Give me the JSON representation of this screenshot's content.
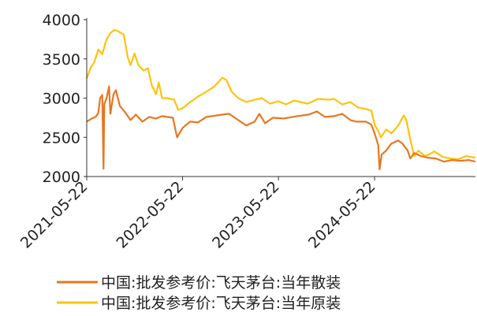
{
  "chart_data": {
    "type": "line",
    "title": "",
    "xlabel": "",
    "ylabel": "",
    "ylim": [
      2000,
      4000
    ],
    "yticks": [
      2000,
      2500,
      3000,
      3500,
      4000
    ],
    "x_tick_labels": [
      "2021-05-22",
      "2022-05-22",
      "2023-05-22",
      "2024-05-22"
    ],
    "x_tick_dates": [
      "2021-05-22",
      "2022-05-22",
      "2023-05-22",
      "2024-05-22"
    ],
    "x_range": [
      "2021-05-22",
      "2025-06-10"
    ],
    "grid": false,
    "legend_position": "bottom",
    "series": [
      {
        "name": "中国:批发参考价:飞天茅台:当年散装",
        "color": "#E87722",
        "points": [
          [
            "2021-05-22",
            2700
          ],
          [
            "2021-06-10",
            2740
          ],
          [
            "2021-06-25",
            2760
          ],
          [
            "2021-07-05",
            2810
          ],
          [
            "2021-07-12",
            3000
          ],
          [
            "2021-07-20",
            3040
          ],
          [
            "2021-07-25",
            2100
          ],
          [
            "2021-07-28",
            2930
          ],
          [
            "2021-08-05",
            2990
          ],
          [
            "2021-08-15",
            3150
          ],
          [
            "2021-08-20",
            2800
          ],
          [
            "2021-09-01",
            3050
          ],
          [
            "2021-09-10",
            3100
          ],
          [
            "2021-09-25",
            2900
          ],
          [
            "2021-10-15",
            2820
          ],
          [
            "2021-11-05",
            2720
          ],
          [
            "2021-11-25",
            2790
          ],
          [
            "2021-12-20",
            2700
          ],
          [
            "2022-01-15",
            2760
          ],
          [
            "2022-02-10",
            2740
          ],
          [
            "2022-03-05",
            2770
          ],
          [
            "2022-04-15",
            2750
          ],
          [
            "2022-05-01",
            2500
          ],
          [
            "2022-05-22",
            2620
          ],
          [
            "2022-06-20",
            2700
          ],
          [
            "2022-07-20",
            2690
          ],
          [
            "2022-08-20",
            2760
          ],
          [
            "2022-10-01",
            2780
          ],
          [
            "2022-11-15",
            2800
          ],
          [
            "2022-12-20",
            2720
          ],
          [
            "2023-01-20",
            2650
          ],
          [
            "2023-02-20",
            2700
          ],
          [
            "2023-03-10",
            2800
          ],
          [
            "2023-04-01",
            2680
          ],
          [
            "2023-05-01",
            2750
          ],
          [
            "2023-06-10",
            2740
          ],
          [
            "2023-08-01",
            2770
          ],
          [
            "2023-09-15",
            2790
          ],
          [
            "2023-10-15",
            2830
          ],
          [
            "2023-11-15",
            2760
          ],
          [
            "2023-12-20",
            2770
          ],
          [
            "2024-01-20",
            2800
          ],
          [
            "2024-02-20",
            2720
          ],
          [
            "2024-03-15",
            2700
          ],
          [
            "2024-04-20",
            2700
          ],
          [
            "2024-05-10",
            2660
          ],
          [
            "2024-05-22",
            2550
          ],
          [
            "2024-06-05",
            2400
          ],
          [
            "2024-06-10",
            2090
          ],
          [
            "2024-06-18",
            2280
          ],
          [
            "2024-07-05",
            2330
          ],
          [
            "2024-07-25",
            2420
          ],
          [
            "2024-08-20",
            2460
          ],
          [
            "2024-09-05",
            2420
          ],
          [
            "2024-09-25",
            2330
          ],
          [
            "2024-10-05",
            2230
          ],
          [
            "2024-10-20",
            2300
          ],
          [
            "2024-11-15",
            2260
          ],
          [
            "2024-12-10",
            2240
          ],
          [
            "2025-01-10",
            2230
          ],
          [
            "2025-02-10",
            2190
          ],
          [
            "2025-03-15",
            2210
          ],
          [
            "2025-04-15",
            2200
          ],
          [
            "2025-05-15",
            2210
          ],
          [
            "2025-06-10",
            2190
          ]
        ]
      },
      {
        "name": "中国:批发参考价:飞天茅台:当年原装",
        "color": "#FFC20E",
        "points": [
          [
            "2021-05-22",
            3250
          ],
          [
            "2021-06-05",
            3380
          ],
          [
            "2021-06-20",
            3460
          ],
          [
            "2021-07-05",
            3620
          ],
          [
            "2021-07-20",
            3560
          ],
          [
            "2021-08-05",
            3750
          ],
          [
            "2021-08-20",
            3830
          ],
          [
            "2021-09-05",
            3870
          ],
          [
            "2021-09-20",
            3850
          ],
          [
            "2021-10-10",
            3810
          ],
          [
            "2021-10-25",
            3520
          ],
          [
            "2021-11-05",
            3420
          ],
          [
            "2021-11-20",
            3570
          ],
          [
            "2021-12-05",
            3420
          ],
          [
            "2021-12-25",
            3350
          ],
          [
            "2022-01-10",
            3380
          ],
          [
            "2022-01-25",
            3160
          ],
          [
            "2022-02-10",
            3050
          ],
          [
            "2022-02-20",
            3200
          ],
          [
            "2022-03-05",
            3000
          ],
          [
            "2022-03-25",
            3000
          ],
          [
            "2022-04-20",
            2980
          ],
          [
            "2022-05-05",
            2850
          ],
          [
            "2022-05-22",
            2870
          ],
          [
            "2022-06-20",
            2950
          ],
          [
            "2022-07-20",
            3020
          ],
          [
            "2022-08-20",
            3080
          ],
          [
            "2022-09-20",
            3150
          ],
          [
            "2022-10-20",
            3260
          ],
          [
            "2022-11-05",
            3230
          ],
          [
            "2022-11-25",
            3080
          ],
          [
            "2022-12-20",
            3000
          ],
          [
            "2023-01-20",
            2950
          ],
          [
            "2023-02-20",
            2980
          ],
          [
            "2023-03-20",
            3000
          ],
          [
            "2023-04-20",
            2930
          ],
          [
            "2023-05-22",
            2960
          ],
          [
            "2023-06-20",
            2920
          ],
          [
            "2023-07-20",
            2970
          ],
          [
            "2023-09-10",
            2930
          ],
          [
            "2023-10-20",
            2990
          ],
          [
            "2023-12-01",
            2980
          ],
          [
            "2023-12-20",
            2990
          ],
          [
            "2024-01-20",
            2920
          ],
          [
            "2024-02-20",
            2950
          ],
          [
            "2024-03-20",
            2880
          ],
          [
            "2024-04-20",
            2860
          ],
          [
            "2024-05-10",
            2840
          ],
          [
            "2024-05-22",
            2660
          ],
          [
            "2024-06-05",
            2580
          ],
          [
            "2024-06-15",
            2500
          ],
          [
            "2024-07-05",
            2600
          ],
          [
            "2024-07-25",
            2550
          ],
          [
            "2024-08-20",
            2650
          ],
          [
            "2024-09-10",
            2780
          ],
          [
            "2024-09-20",
            2720
          ],
          [
            "2024-10-05",
            2470
          ],
          [
            "2024-10-20",
            2260
          ],
          [
            "2024-11-05",
            2330
          ],
          [
            "2024-12-01",
            2260
          ],
          [
            "2025-01-05",
            2320
          ],
          [
            "2025-02-05",
            2250
          ],
          [
            "2025-03-05",
            2230
          ],
          [
            "2025-04-05",
            2220
          ],
          [
            "2025-05-05",
            2260
          ],
          [
            "2025-06-10",
            2240
          ]
        ]
      }
    ]
  }
}
